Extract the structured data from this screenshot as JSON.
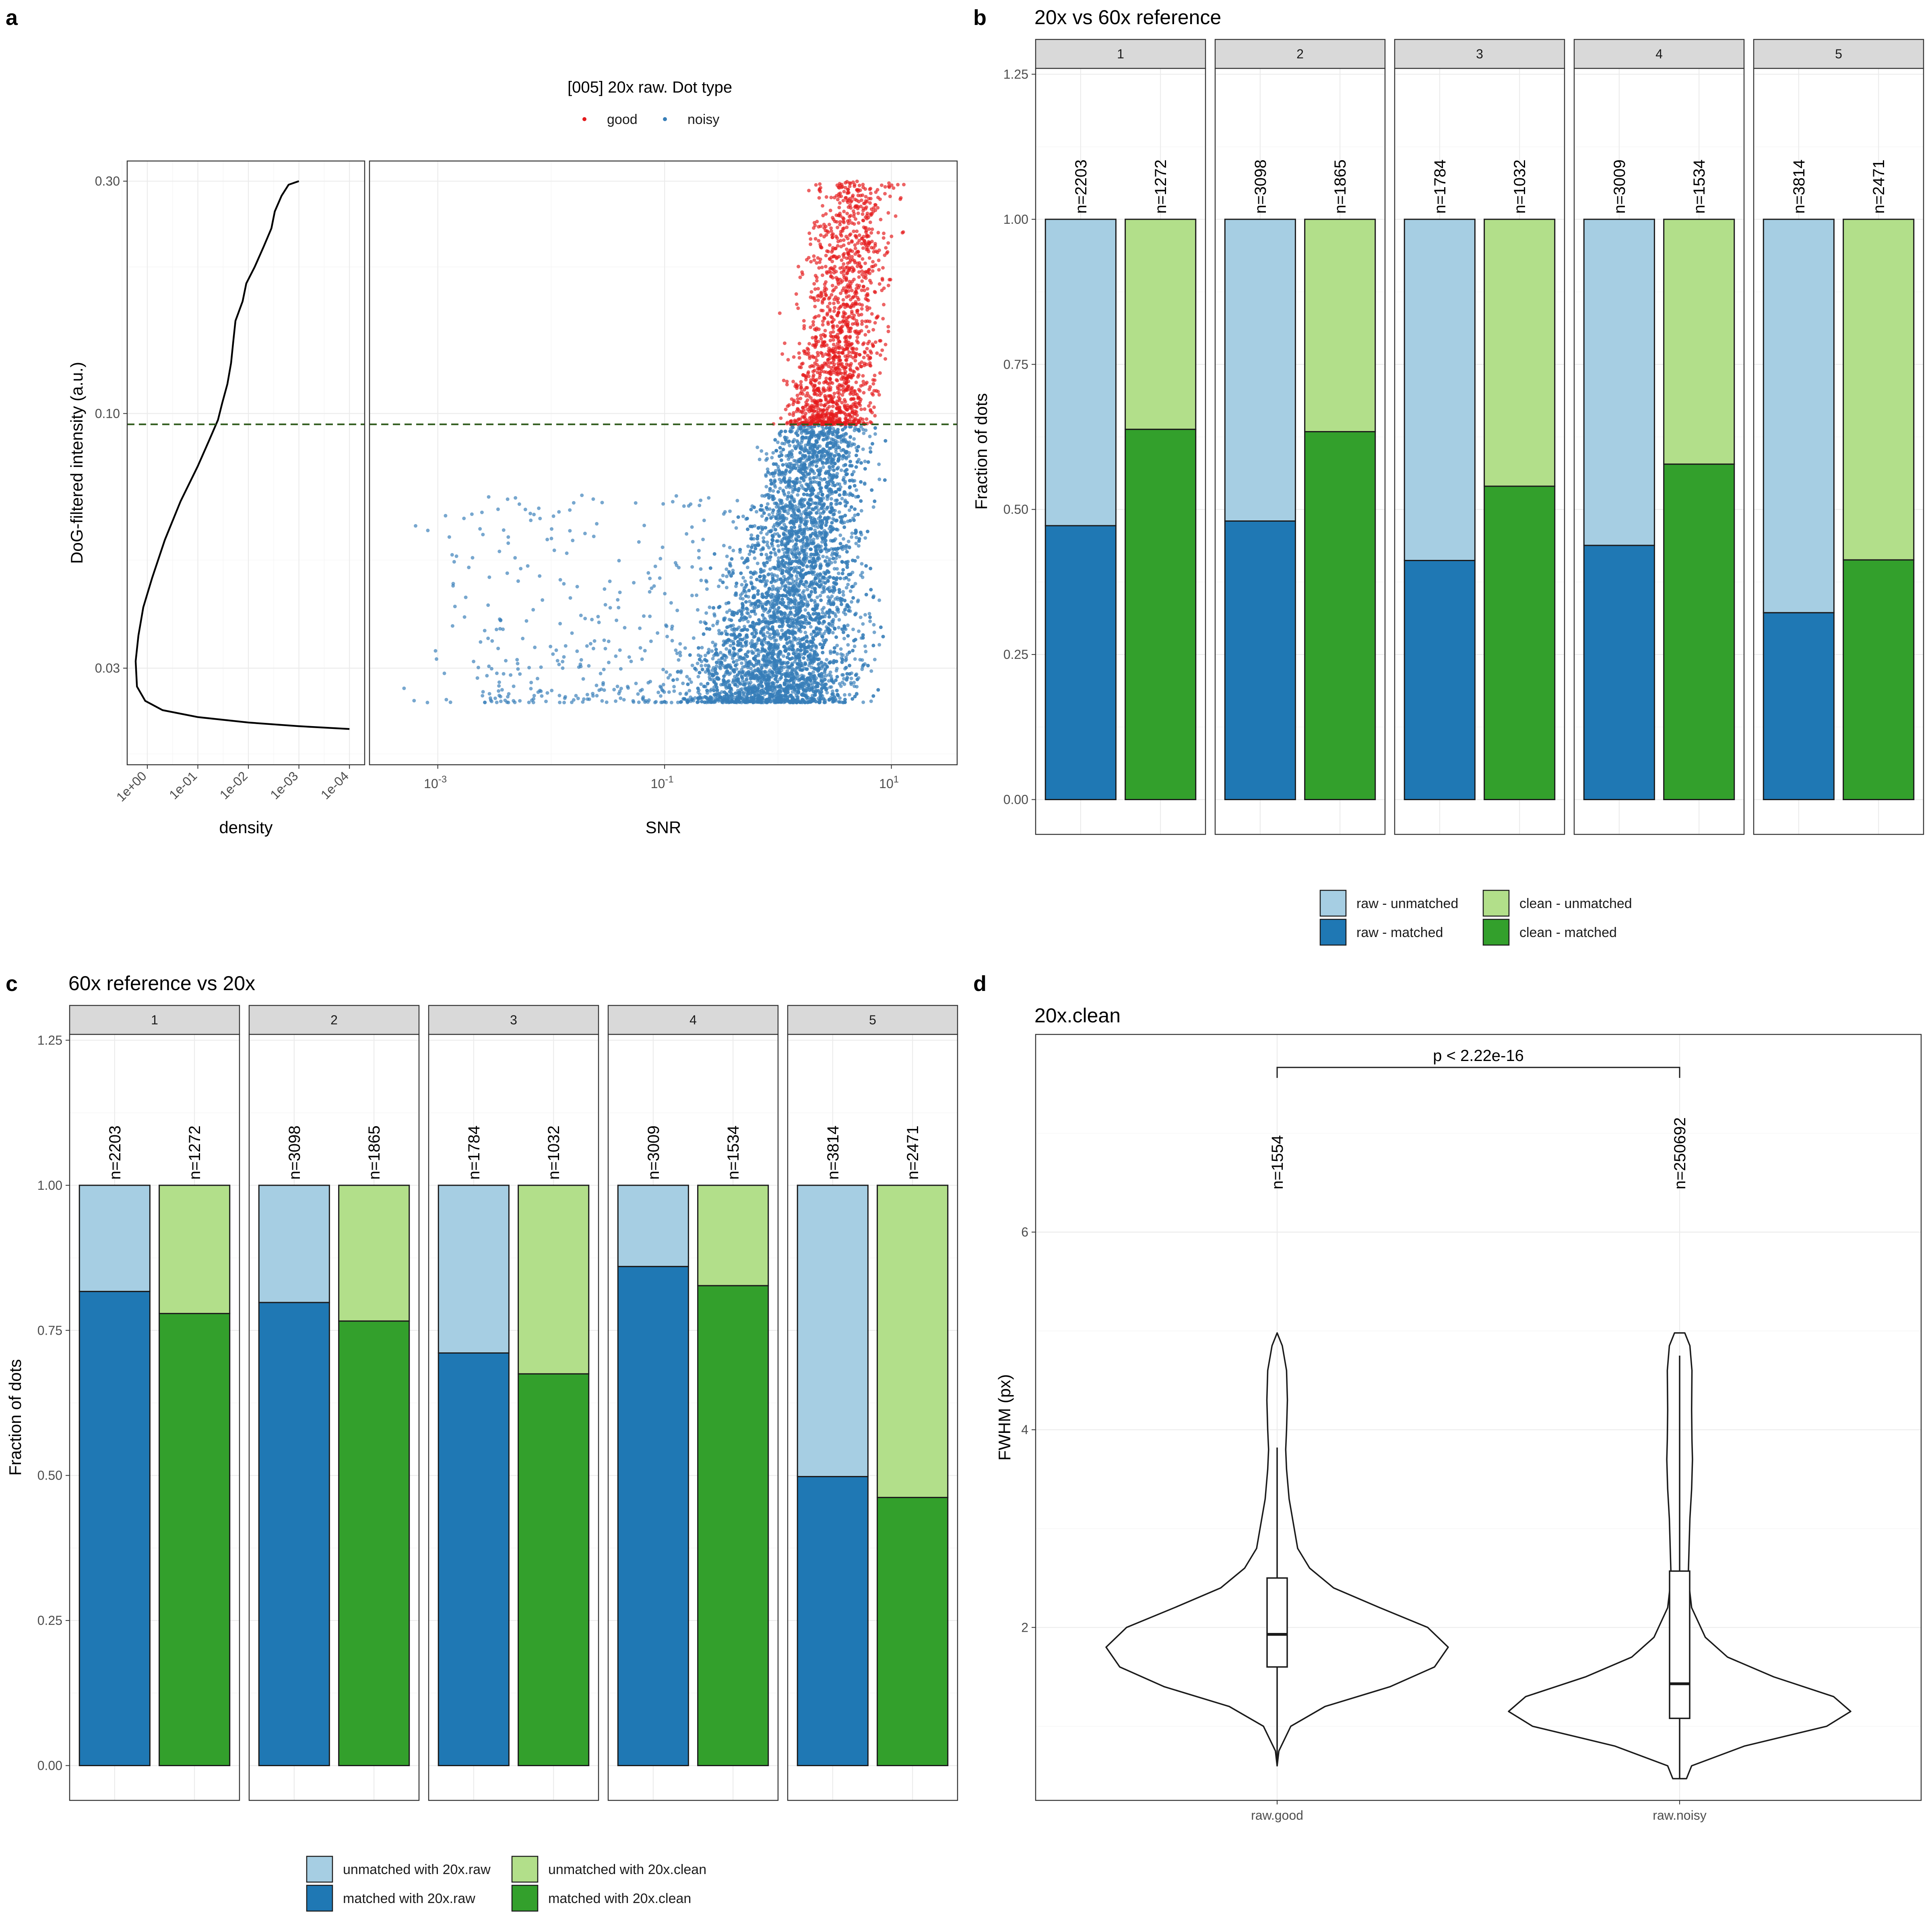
{
  "panels": {
    "a": {
      "letter": "a",
      "legend_title": "[005] 20x raw. Dot type",
      "legend": [
        {
          "label": "good",
          "color": "#e41a1c"
        },
        {
          "label": "noisy",
          "color": "#377eb8"
        }
      ]
    },
    "b": {
      "letter": "b",
      "title": "20x vs 60x reference"
    },
    "c": {
      "letter": "c",
      "title": "60x reference vs 20x"
    },
    "d": {
      "letter": "d",
      "title": "20x.clean"
    }
  },
  "chart_data": [
    {
      "id": "a-density",
      "type": "line",
      "xlabel": "density",
      "ylabel": "DoG-filtered intensity (a.u.)",
      "x_scale": "log-reversed",
      "y_scale": "log",
      "xlim": [
        2.5,
        5e-05
      ],
      "ylim": [
        0.019,
        0.33
      ],
      "x_ticks": [
        "1e+00",
        "1e-01",
        "1e-02",
        "1e-03",
        "1e-04"
      ],
      "x_tick_values": [
        1,
        0.1,
        0.01,
        0.001,
        0.0001
      ],
      "y_ticks": [
        "0.30",
        "0.10",
        "0.03"
      ],
      "y_tick_values": [
        0.3,
        0.1,
        0.03
      ],
      "threshold": 0.095,
      "points": [
        [
          0.0001,
          0.0225
        ],
        [
          0.001,
          0.0228
        ],
        [
          0.01,
          0.0232
        ],
        [
          0.1,
          0.0238
        ],
        [
          0.5,
          0.0246
        ],
        [
          1.1,
          0.0257
        ],
        [
          1.6,
          0.0275
        ],
        [
          1.7,
          0.031
        ],
        [
          1.5,
          0.035
        ],
        [
          1.2,
          0.04
        ],
        [
          0.8,
          0.046
        ],
        [
          0.45,
          0.055
        ],
        [
          0.22,
          0.066
        ],
        [
          0.1,
          0.078
        ],
        [
          0.06,
          0.088
        ],
        [
          0.04,
          0.097
        ],
        [
          0.033,
          0.105
        ],
        [
          0.026,
          0.115
        ],
        [
          0.022,
          0.127
        ],
        [
          0.02,
          0.14
        ],
        [
          0.018,
          0.155
        ],
        [
          0.013,
          0.17
        ],
        [
          0.011,
          0.185
        ],
        [
          0.0075,
          0.2
        ],
        [
          0.005,
          0.22
        ],
        [
          0.0035,
          0.24
        ],
        [
          0.003,
          0.26
        ],
        [
          0.0022,
          0.28
        ],
        [
          0.0016,
          0.295
        ],
        [
          0.001,
          0.3
        ]
      ]
    },
    {
      "id": "a-scatter",
      "type": "scatter",
      "xlabel": "SNR",
      "x_scale": "log",
      "y_scale": "log",
      "xlim": [
        0.00025,
        38
      ],
      "ylim": [
        0.019,
        0.33
      ],
      "x_ticks": [
        "10",
        "10",
        "10"
      ],
      "x_tick_exponents": [
        "-3",
        "-1",
        "1"
      ],
      "x_tick_values": [
        0.001,
        0.1,
        10
      ],
      "threshold": 0.095,
      "series": [
        {
          "name": "good",
          "color": "#e41a1c"
        },
        {
          "name": "noisy",
          "color": "#377eb8"
        }
      ]
    },
    {
      "id": "b-bars",
      "type": "bar",
      "ylabel": "Fraction of dots",
      "ylim": [
        -0.06,
        1.26
      ],
      "y_ticks": [
        "0.00",
        "0.25",
        "0.50",
        "0.75",
        "1.00",
        "1.25"
      ],
      "y_tick_values": [
        0,
        0.25,
        0.5,
        0.75,
        1.0,
        1.25
      ],
      "facets": [
        "1",
        "2",
        "3",
        "4",
        "5"
      ],
      "bars": [
        {
          "facet": "1",
          "kind": "raw",
          "n": "n=2203",
          "matched": 0.472
        },
        {
          "facet": "1",
          "kind": "clean",
          "n": "n=1272",
          "matched": 0.638
        },
        {
          "facet": "2",
          "kind": "raw",
          "n": "n=3098",
          "matched": 0.48
        },
        {
          "facet": "2",
          "kind": "clean",
          "n": "n=1865",
          "matched": 0.634
        },
        {
          "facet": "3",
          "kind": "raw",
          "n": "n=1784",
          "matched": 0.412
        },
        {
          "facet": "3",
          "kind": "clean",
          "n": "n=1032",
          "matched": 0.54
        },
        {
          "facet": "4",
          "kind": "raw",
          "n": "n=3009",
          "matched": 0.438
        },
        {
          "facet": "4",
          "kind": "clean",
          "n": "n=1534",
          "matched": 0.578
        },
        {
          "facet": "5",
          "kind": "raw",
          "n": "n=3814",
          "matched": 0.322
        },
        {
          "facet": "5",
          "kind": "clean",
          "n": "n=2471",
          "matched": 0.413
        }
      ],
      "legend": [
        {
          "label": "raw - unmatched",
          "color": "#a6cee3"
        },
        {
          "label": "clean - unmatched",
          "color": "#b2df8a"
        },
        {
          "label": "raw - matched",
          "color": "#1f78b4"
        },
        {
          "label": "clean - matched",
          "color": "#33a02c"
        }
      ]
    },
    {
      "id": "c-bars",
      "type": "bar",
      "ylabel": "Fraction of dots",
      "ylim": [
        -0.06,
        1.26
      ],
      "y_ticks": [
        "0.00",
        "0.25",
        "0.50",
        "0.75",
        "1.00",
        "1.25"
      ],
      "y_tick_values": [
        0,
        0.25,
        0.5,
        0.75,
        1.0,
        1.25
      ],
      "facets": [
        "1",
        "2",
        "3",
        "4",
        "5"
      ],
      "bars": [
        {
          "facet": "1",
          "kind": "raw",
          "n": "n=2203",
          "matched": 0.817
        },
        {
          "facet": "1",
          "kind": "clean",
          "n": "n=1272",
          "matched": 0.779
        },
        {
          "facet": "2",
          "kind": "raw",
          "n": "n=3098",
          "matched": 0.798
        },
        {
          "facet": "2",
          "kind": "clean",
          "n": "n=1865",
          "matched": 0.766
        },
        {
          "facet": "3",
          "kind": "raw",
          "n": "n=1784",
          "matched": 0.711
        },
        {
          "facet": "3",
          "kind": "clean",
          "n": "n=1032",
          "matched": 0.675
        },
        {
          "facet": "4",
          "kind": "raw",
          "n": "n=3009",
          "matched": 0.86
        },
        {
          "facet": "4",
          "kind": "clean",
          "n": "n=1534",
          "matched": 0.827
        },
        {
          "facet": "5",
          "kind": "raw",
          "n": "n=3814",
          "matched": 0.498
        },
        {
          "facet": "5",
          "kind": "clean",
          "n": "n=2471",
          "matched": 0.462
        }
      ],
      "legend": [
        {
          "label": "unmatched with 20x.raw",
          "color": "#a6cee3"
        },
        {
          "label": "unmatched with 20x.clean",
          "color": "#b2df8a"
        },
        {
          "label": "matched with 20x.raw",
          "color": "#1f78b4"
        },
        {
          "label": "matched with 20x.clean",
          "color": "#33a02c"
        }
      ]
    },
    {
      "id": "d-violin",
      "type": "violin",
      "ylabel": "FWHM (px)",
      "ylim": [
        0.25,
        8.0
      ],
      "y_ticks": [
        "2",
        "4",
        "6"
      ],
      "y_tick_values": [
        2,
        4,
        6
      ],
      "categories": [
        "raw.good",
        "raw.noisy"
      ],
      "n_labels": [
        "n=1554",
        "n=250692"
      ],
      "significance": "p < 2.22e-16",
      "groups": [
        {
          "name": "raw.good",
          "box": {
            "q1": 1.6,
            "median": 1.93,
            "q3": 2.5,
            "whisker_low": 0.6,
            "whisker_high": 3.82
          },
          "profile": [
            [
              0.6,
              0.0
            ],
            [
              0.75,
              0.01
            ],
            [
              1.0,
              0.08
            ],
            [
              1.2,
              0.28
            ],
            [
              1.4,
              0.66
            ],
            [
              1.6,
              0.92
            ],
            [
              1.8,
              1.0
            ],
            [
              2.0,
              0.88
            ],
            [
              2.2,
              0.6
            ],
            [
              2.4,
              0.33
            ],
            [
              2.6,
              0.19
            ],
            [
              2.8,
              0.12
            ],
            [
              3.0,
              0.1
            ],
            [
              3.3,
              0.07
            ],
            [
              3.6,
              0.055
            ],
            [
              3.8,
              0.05
            ],
            [
              4.0,
              0.055
            ],
            [
              4.3,
              0.06
            ],
            [
              4.6,
              0.055
            ],
            [
              4.85,
              0.03
            ],
            [
              4.98,
              0.0
            ]
          ]
        },
        {
          "name": "raw.noisy",
          "box": {
            "q1": 1.08,
            "median": 1.43,
            "q3": 2.57,
            "whisker_low": 0.47,
            "whisker_high": 4.75
          },
          "profile": [
            [
              0.47,
              0.04
            ],
            [
              0.6,
              0.07
            ],
            [
              0.8,
              0.38
            ],
            [
              1.0,
              0.86
            ],
            [
              1.15,
              1.0
            ],
            [
              1.3,
              0.9
            ],
            [
              1.5,
              0.55
            ],
            [
              1.7,
              0.28
            ],
            [
              1.9,
              0.15
            ],
            [
              2.2,
              0.07
            ],
            [
              2.5,
              0.05
            ],
            [
              2.8,
              0.055
            ],
            [
              3.1,
              0.06
            ],
            [
              3.4,
              0.07
            ],
            [
              3.7,
              0.075
            ],
            [
              3.9,
              0.072
            ],
            [
              4.2,
              0.07
            ],
            [
              4.6,
              0.072
            ],
            [
              4.85,
              0.06
            ],
            [
              4.98,
              0.03
            ]
          ]
        }
      ]
    }
  ]
}
